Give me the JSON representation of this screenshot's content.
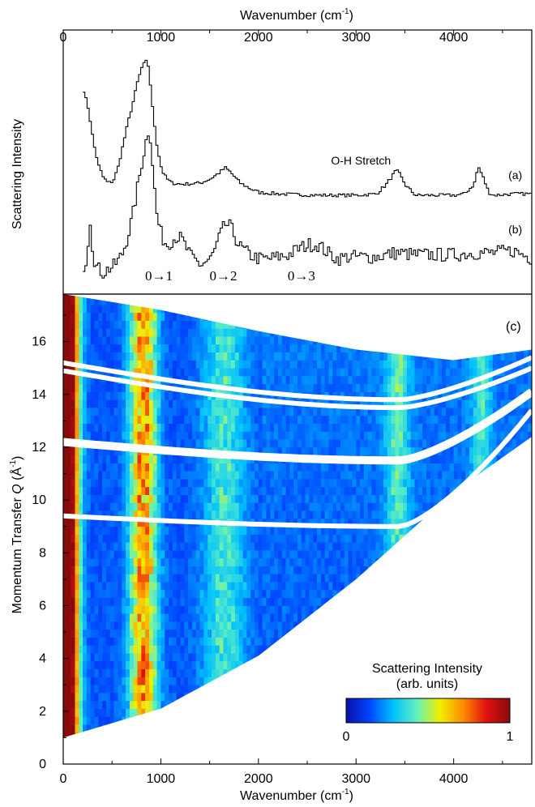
{
  "top_axis": {
    "label": "Wavenumber (cm",
    "sup": "-1",
    "close": ")",
    "ticks": [
      "0",
      "1000",
      "2000",
      "3000",
      "4000"
    ],
    "tick_values": [
      0,
      1000,
      2000,
      3000,
      4000
    ]
  },
  "chart_data": [
    {
      "type": "line",
      "panel": "top",
      "ylabel": "Scattering Intensity",
      "xlim": [
        0,
        4800
      ],
      "series": [
        {
          "name": "(a)",
          "x": [
            200,
            250,
            300,
            350,
            400,
            450,
            500,
            550,
            600,
            650,
            700,
            750,
            800,
            850,
            870,
            900,
            950,
            1000,
            1050,
            1100,
            1200,
            1300,
            1400,
            1500,
            1600,
            1650,
            1700,
            1800,
            1900,
            2000,
            2200,
            2400,
            2600,
            2800,
            3000,
            3200,
            3300,
            3400,
            3430,
            3500,
            3600,
            3800,
            4000,
            4100,
            4200,
            4240,
            4280,
            4350,
            4400,
            4600,
            4800
          ],
          "y": [
            4.3,
            3.6,
            2.4,
            1.6,
            1.15,
            0.95,
            1.0,
            1.5,
            2.3,
            3.1,
            3.8,
            4.6,
            5.2,
            5.4,
            5.0,
            3.8,
            2.3,
            1.4,
            1.1,
            0.95,
            0.9,
            0.92,
            0.95,
            1.1,
            1.35,
            1.5,
            1.35,
            0.95,
            0.75,
            0.6,
            0.55,
            0.52,
            0.5,
            0.5,
            0.5,
            0.55,
            0.9,
            1.4,
            1.3,
            0.85,
            0.5,
            0.5,
            0.5,
            0.55,
            0.9,
            1.55,
            1.25,
            0.6,
            0.5,
            0.55,
            0.55
          ]
        },
        {
          "name": "(b)",
          "x": [
            200,
            230,
            250,
            270,
            290,
            320,
            350,
            400,
            450,
            500,
            550,
            600,
            650,
            700,
            750,
            800,
            850,
            870,
            890,
            920,
            950,
            1000,
            1050,
            1100,
            1150,
            1200,
            1300,
            1400,
            1500,
            1550,
            1600,
            1650,
            1700,
            1750,
            1800,
            1900,
            2000,
            2100,
            2200,
            2300,
            2400,
            2500,
            2600,
            2700,
            2800,
            2900,
            3000,
            3200,
            3400,
            3600,
            3800,
            4000,
            4200,
            4400,
            4600,
            4800
          ],
          "y": [
            0.1,
            0.25,
            0.9,
            1.3,
            0.5,
            0.1,
            0,
            -0.1,
            0,
            0.05,
            0.2,
            0.4,
            0.8,
            1.3,
            2.0,
            2.7,
            3.3,
            3.5,
            3.1,
            2.1,
            1.3,
            0.8,
            0.6,
            0.7,
            0.8,
            0.75,
            0.3,
            0.1,
            0.25,
            0.5,
            0.85,
            1.1,
            1.05,
            0.8,
            0.55,
            0.35,
            0.25,
            0.25,
            0.3,
            0.35,
            0.5,
            0.6,
            0.6,
            0.4,
            0.25,
            0.3,
            0.3,
            0.3,
            0.4,
            0.35,
            0.35,
            0.35,
            0.4,
            0.4,
            0.45,
            0.25
          ]
        }
      ],
      "annotations": [
        {
          "text": "O-H Stretch",
          "x": 3050
        },
        {
          "text": "(a)",
          "x": 4560
        },
        {
          "text": "(b)",
          "x": 4560
        },
        {
          "text": "0→1",
          "x": 980
        },
        {
          "text": "0→2",
          "x": 1640
        },
        {
          "text": "0→3",
          "x": 2440
        }
      ]
    },
    {
      "type": "heatmap",
      "panel": "bottom",
      "label": "(c)",
      "xlabel": "Wavenumber (cm-1)",
      "ylabel": "Momentum Transfer Q (Å-1)",
      "xlim": [
        0,
        4800
      ],
      "ylim": [
        0,
        17.8
      ],
      "x_ticks": [
        0,
        1000,
        2000,
        3000,
        4000
      ],
      "y_ticks": [
        0,
        2,
        4,
        6,
        8,
        10,
        12,
        14,
        16
      ],
      "q_lower_edge": {
        "x": [
          0,
          1000,
          2000,
          3000,
          4000,
          4800
        ],
        "q": [
          1.0,
          2.1,
          4.1,
          7.0,
          10.3,
          12.4
        ]
      },
      "q_upper_edge": {
        "x": [
          0,
          1000,
          2000,
          3000,
          4000,
          4800
        ],
        "q": [
          17.8,
          17.2,
          16.4,
          15.7,
          15.3,
          15.7
        ]
      },
      "gaps_q_at_zero": [
        15.2,
        14.9,
        12.2,
        9.4
      ],
      "bands": [
        {
          "center": 50,
          "width": 110,
          "intensity": 1.0
        },
        {
          "center": 820,
          "width": 140,
          "intensity": 0.7
        },
        {
          "center": 1650,
          "width": 220,
          "intensity": 0.3
        },
        {
          "center": 3430,
          "width": 120,
          "intensity": 0.3
        },
        {
          "center": 4280,
          "width": 100,
          "intensity": 0.25
        }
      ],
      "colorbar": {
        "title_line1": "Scattering Intensity",
        "title_line2": "(arb. units)",
        "min_label": "0",
        "max_label": "1",
        "colors": [
          "#0a10a8",
          "#0044ff",
          "#00c0ff",
          "#5ff0c0",
          "#f0f000",
          "#ff8a00",
          "#e01010",
          "#8a0a0a"
        ]
      }
    }
  ]
}
